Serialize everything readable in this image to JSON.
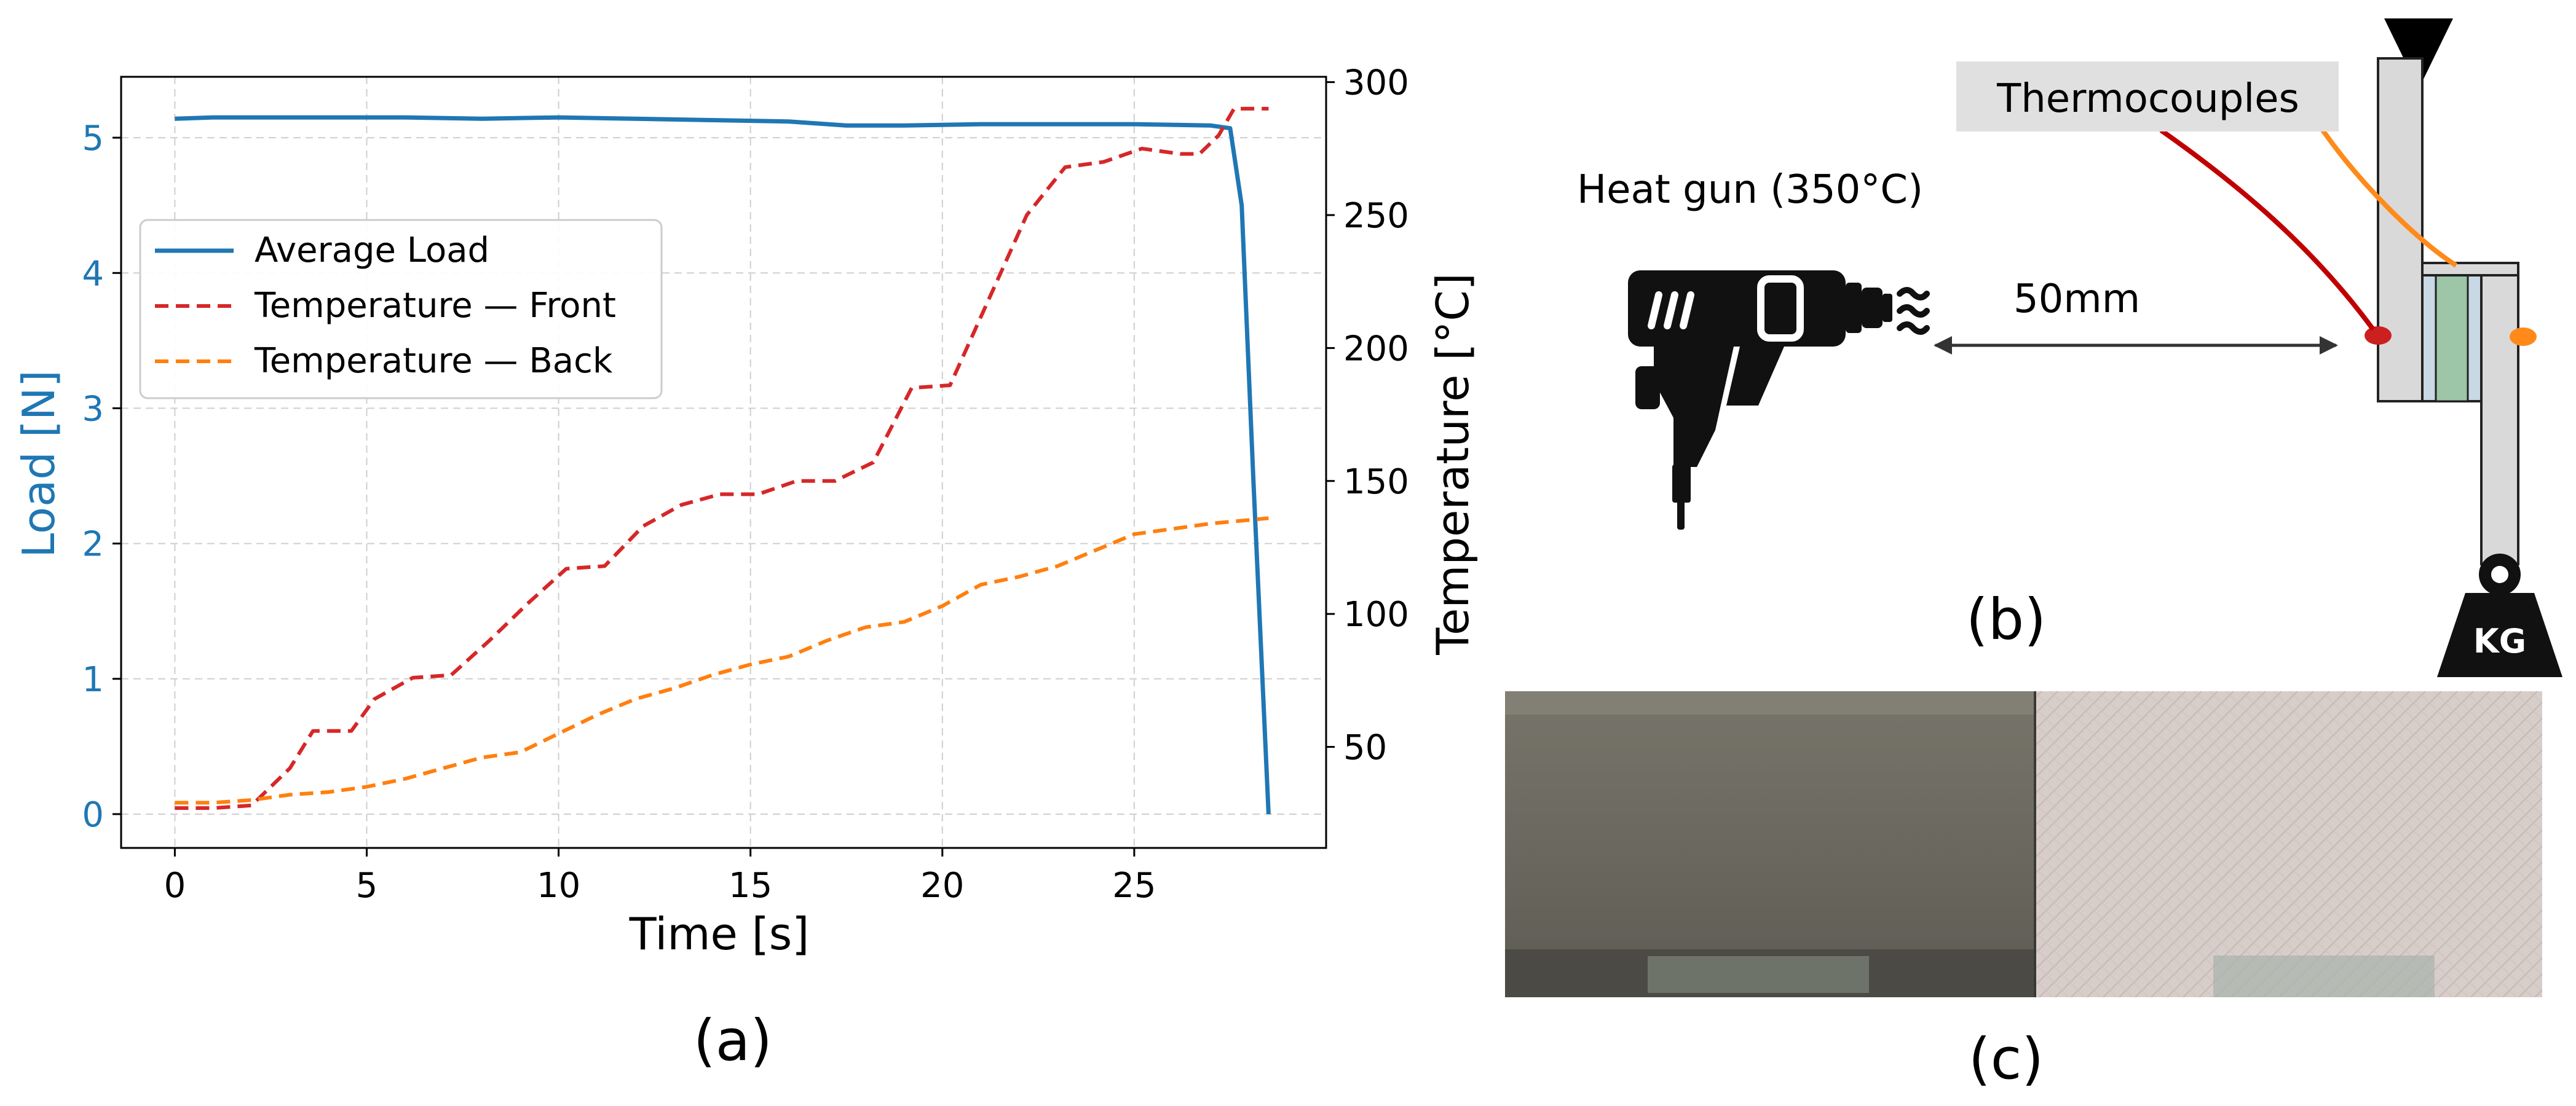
{
  "colors": {
    "load": "#1f77b4",
    "front": "#d62728",
    "back": "#ff7f0e",
    "grid": "#cfcfcf"
  },
  "panels": {
    "a": "(a)",
    "b": "(b)",
    "c": "(c)"
  },
  "chart_data": {
    "type": "line",
    "title": "",
    "xlabel": "Time [s]",
    "ylabel": "Load [N]",
    "y2label": "Temperature [°C]",
    "xlim": [
      -1.4,
      30.0
    ],
    "ylim": [
      -0.25,
      5.45
    ],
    "y2lim": [
      12,
      302
    ],
    "xticks": [
      0,
      5,
      10,
      15,
      20,
      25
    ],
    "yticks": [
      0,
      1,
      2,
      3,
      4,
      5
    ],
    "y2ticks": [
      50,
      100,
      150,
      200,
      250,
      300
    ],
    "grid": true,
    "legend_position": "upper left",
    "series": [
      {
        "name": "Average Load",
        "axis": "left",
        "style": "solid",
        "color_key": "load",
        "x": [
          0,
          1,
          2,
          4,
          6,
          8,
          10,
          12,
          14,
          16,
          17.5,
          19,
          21,
          23,
          25,
          27,
          27.5,
          27.8,
          28.1,
          28.5
        ],
        "y": [
          5.14,
          5.15,
          5.15,
          5.15,
          5.15,
          5.14,
          5.15,
          5.14,
          5.13,
          5.12,
          5.09,
          5.09,
          5.1,
          5.1,
          5.1,
          5.09,
          5.07,
          4.5,
          2.5,
          0.0
        ]
      },
      {
        "name": "Temperature — Front",
        "axis": "right",
        "style": "dashed",
        "color_key": "front",
        "x": [
          0,
          1,
          2,
          3,
          3.6,
          4.6,
          5.2,
          6.2,
          7.2,
          8.2,
          9.2,
          10.2,
          11.2,
          12.2,
          13.2,
          14.2,
          15.2,
          16.2,
          17.2,
          18.2,
          19.2,
          20.2,
          21.2,
          22.2,
          23.2,
          24.2,
          25.2,
          26.2,
          26.7,
          27.2,
          27.6,
          28.5
        ],
        "y": [
          27,
          27,
          28,
          42,
          56,
          56,
          68,
          76,
          77,
          90,
          104,
          117,
          118,
          133,
          141,
          145,
          145,
          150,
          150,
          157,
          185,
          186,
          218,
          250,
          268,
          270,
          275,
          273,
          273,
          280,
          290,
          290
        ]
      },
      {
        "name": "Temperature — Back",
        "axis": "right",
        "style": "dashed",
        "color_key": "back",
        "x": [
          0,
          1,
          2,
          3,
          4,
          5,
          6,
          7,
          8,
          9,
          10,
          11,
          12,
          13,
          14,
          15,
          16,
          17,
          18,
          19,
          20,
          21,
          22,
          23,
          24,
          25,
          26,
          27,
          28.5
        ],
        "y": [
          29,
          29,
          30,
          32,
          33,
          35,
          38,
          42,
          46,
          48,
          55,
          62,
          68,
          72,
          77,
          81,
          84,
          90,
          95,
          97,
          103,
          111,
          114,
          118,
          124,
          130,
          132,
          134,
          136
        ]
      }
    ]
  },
  "diagram_b": {
    "heat_gun_label": "Heat gun (350°C)",
    "distance_label": "50mm",
    "thermocouples_label": "Thermocouples",
    "weight_label": "KG"
  }
}
